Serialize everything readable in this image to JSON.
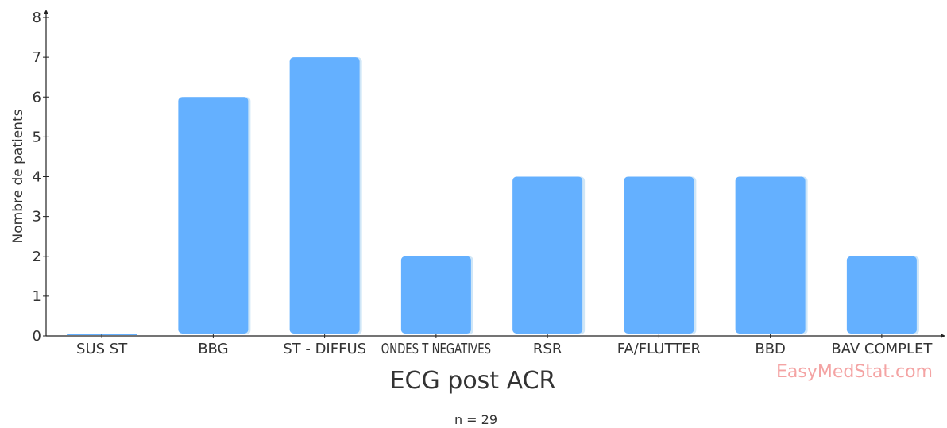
{
  "chart_data": {
    "type": "bar",
    "categories": [
      "SUS ST",
      "BBG",
      "ST - DIFFUS",
      "ONDES T NEGATIVES",
      "RSR",
      "FA/FLUTTER",
      "BBD",
      "BAV COMPLET"
    ],
    "values": [
      0,
      6,
      7,
      2,
      4,
      4,
      4,
      2
    ],
    "title": "",
    "xlabel": "ECG post ACR",
    "ylabel": "Nombre de patients",
    "ylim": [
      0,
      8
    ],
    "yticks": [
      0,
      1,
      2,
      3,
      4,
      5,
      6,
      7,
      8
    ],
    "grid": false,
    "legend": "none",
    "note": "n = 29",
    "watermark": "EasyMedStat.com",
    "colors": {
      "bar": "#64b0ff",
      "bar_shadow": "#cfe6f7",
      "axis": "#222222"
    }
  }
}
